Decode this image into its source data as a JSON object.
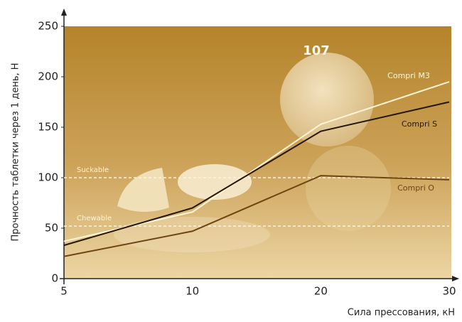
{
  "chart_data": {
    "type": "line",
    "y_label": "Прочность таблетки через 1 день, Н",
    "x_label": "Сила прессования, кН",
    "categories": [
      "5",
      "10",
      "20",
      "30"
    ],
    "ylim": [
      0,
      250
    ],
    "yticks": [
      0,
      50,
      100,
      150,
      200,
      250
    ],
    "series": [
      {
        "name": "Compri M3",
        "color": "#fff6d8",
        "values": [
          37,
          66,
          153,
          195
        ]
      },
      {
        "name": "Compri S",
        "color": "#241505",
        "values": [
          33,
          70,
          146,
          175
        ]
      },
      {
        "name": "Compri O",
        "color": "#6e4512",
        "values": [
          22,
          47,
          102,
          98
        ]
      }
    ],
    "reference_lines": [
      {
        "label": "Suckable",
        "value": 100
      },
      {
        "label": "Chewable",
        "value": 52
      }
    ],
    "annotation": "107"
  }
}
